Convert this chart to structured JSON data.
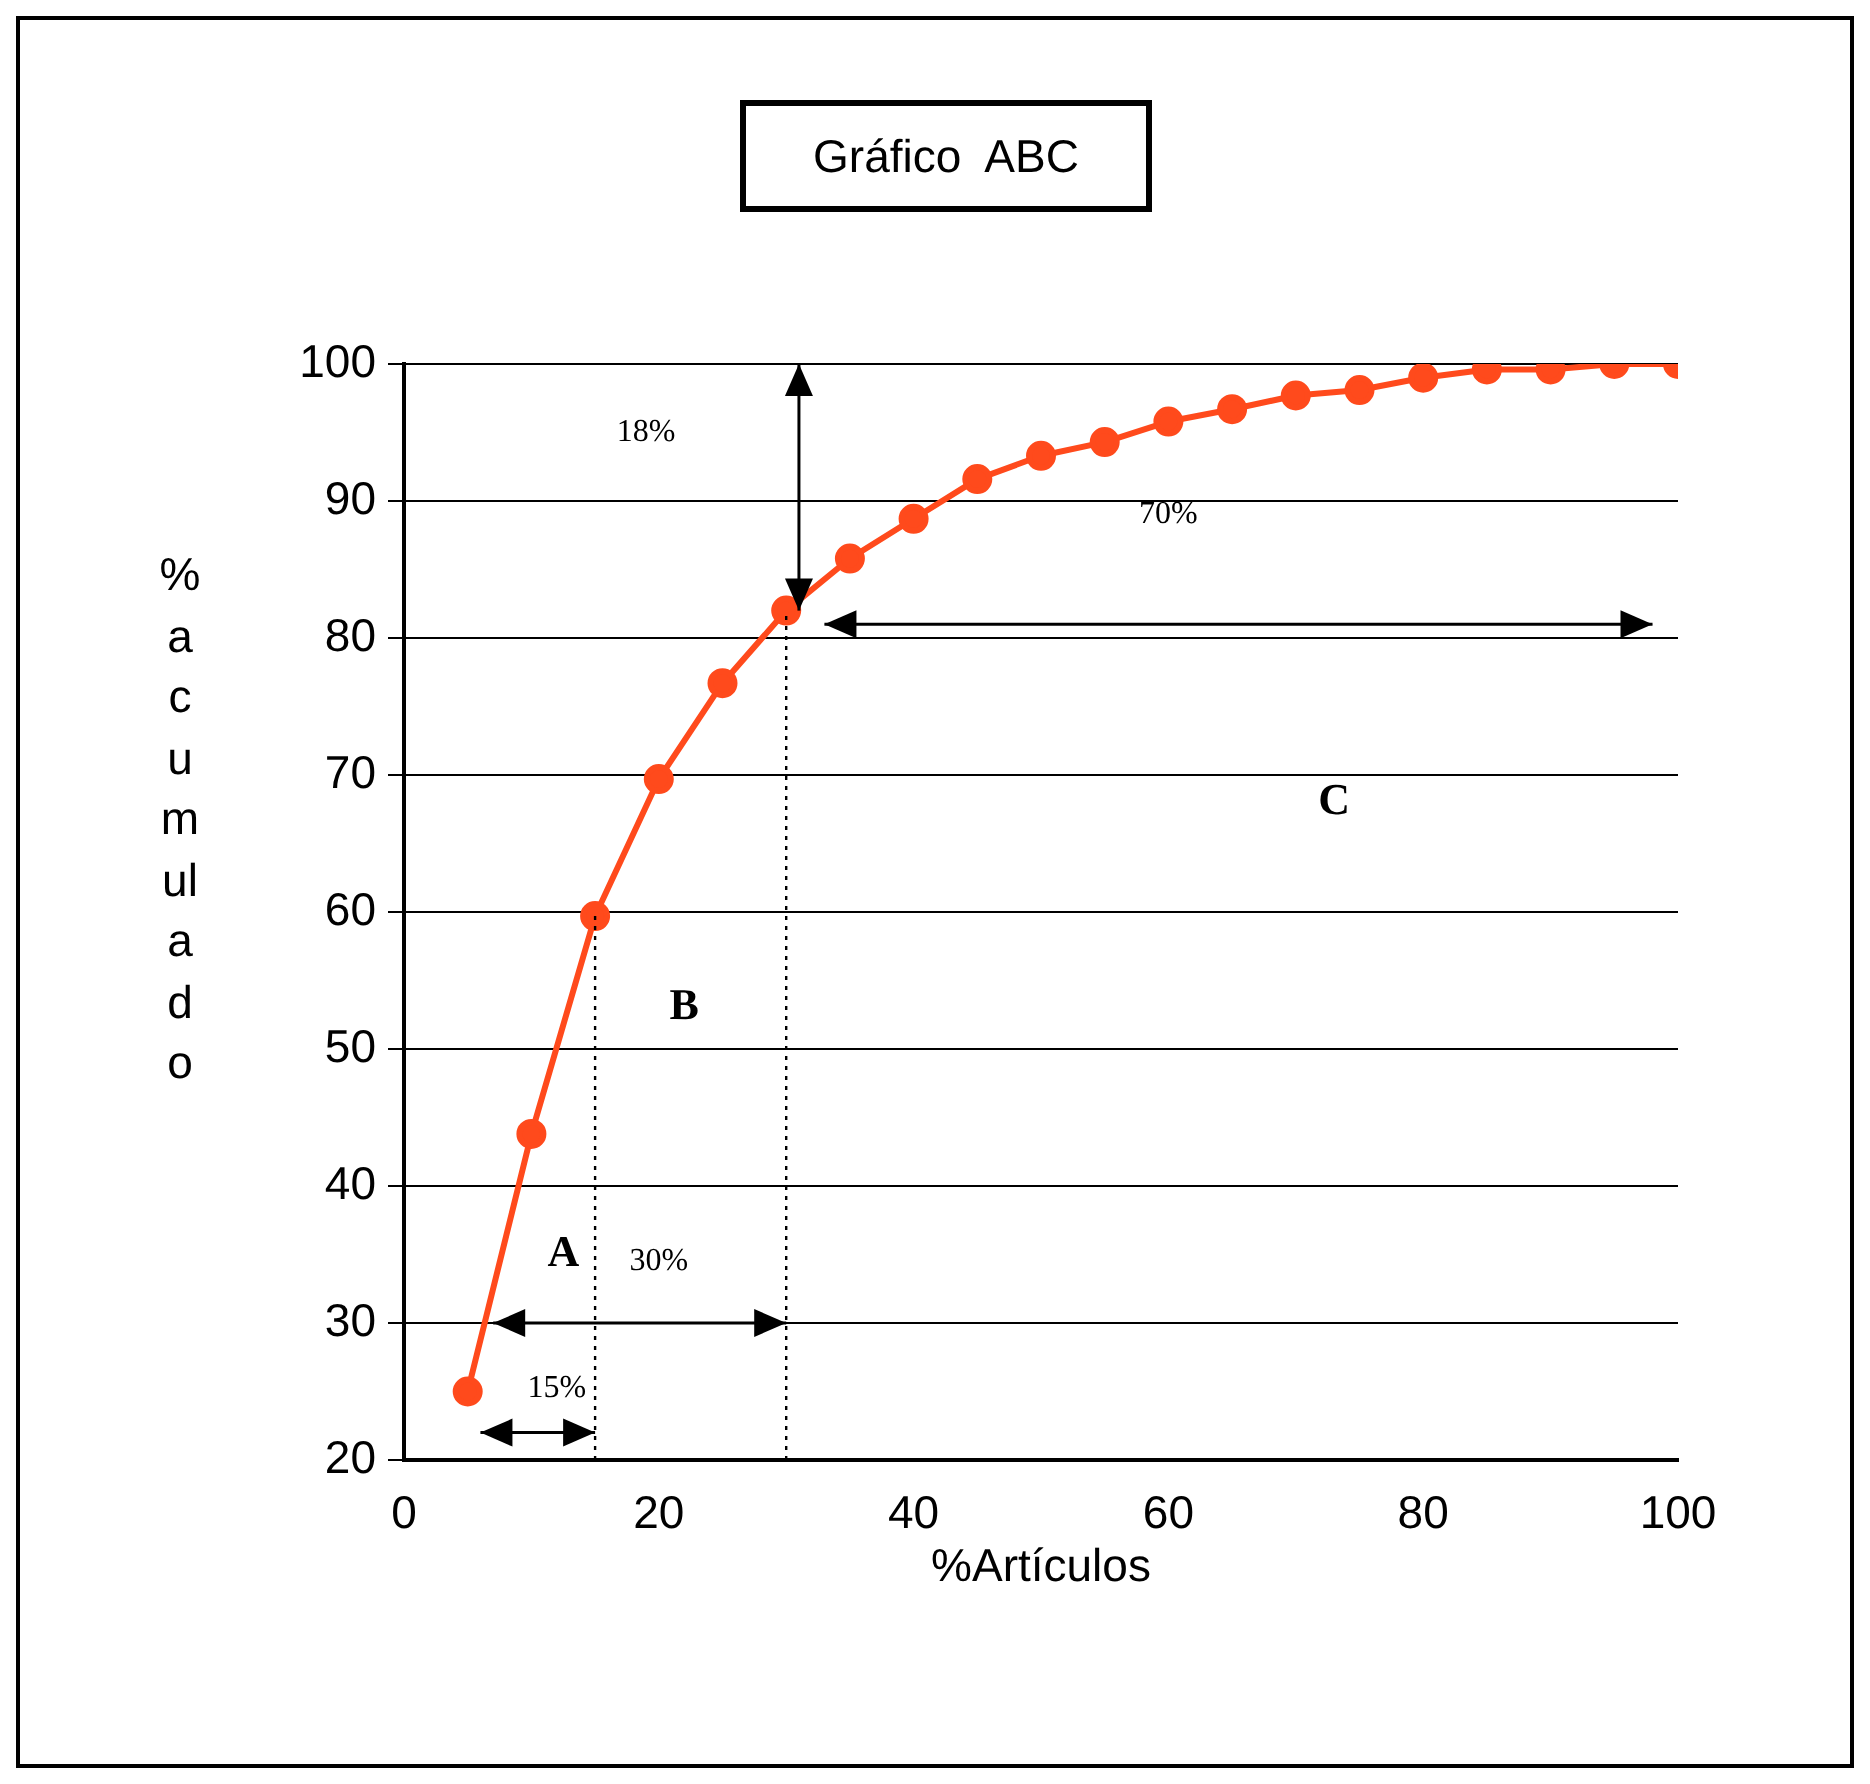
{
  "chart_data": {
    "type": "line",
    "title": "Gráfico  ABC",
    "xlabel": "%Artículos",
    "ylabel": "%acumulado",
    "x": [
      5,
      10,
      15,
      20,
      25,
      30,
      35,
      40,
      45,
      50,
      55,
      60,
      65,
      70,
      75,
      80,
      85,
      90,
      95,
      100
    ],
    "series": [
      {
        "color": "#ff4a1c",
        "values": [
          25,
          43.8,
          59.7,
          69.7,
          76.7,
          82,
          85.8,
          88.7,
          91.6,
          93.3,
          94.3,
          95.8,
          96.7,
          97.7,
          98.1,
          99,
          99.6,
          99.6,
          100,
          100
        ]
      }
    ],
    "xlim": [
      0,
      100
    ],
    "xticks": [
      0,
      20,
      40,
      60,
      80,
      100
    ],
    "ylim": [
      20,
      100
    ],
    "yticks": [
      20,
      30,
      40,
      50,
      60,
      70,
      80,
      90,
      100
    ],
    "grid": "y",
    "marker": "circle",
    "line_style": "solid",
    "legend": false,
    "ref_lines": [
      {
        "axis": "x",
        "value": 15,
        "line_style": "dotted"
      },
      {
        "axis": "x",
        "value": 30,
        "line_style": "dotted"
      }
    ],
    "annotations": [
      "18%",
      "70%",
      "C",
      "B",
      "A",
      "30%",
      "15%"
    ]
  }
}
